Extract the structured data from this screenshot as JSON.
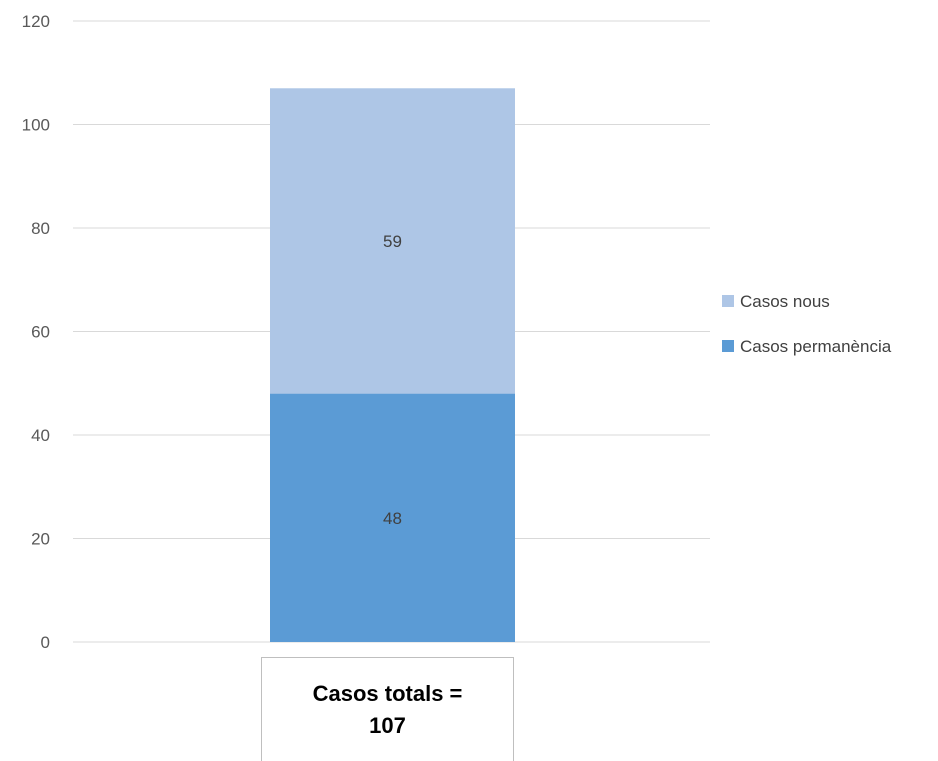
{
  "chart_data": {
    "type": "bar",
    "stacked": true,
    "categories": [
      "Casos totals = 107"
    ],
    "series": [
      {
        "name": "Casos permanència",
        "values": [
          48
        ],
        "color": "#5b9bd5"
      },
      {
        "name": "Casos nous",
        "values": [
          59
        ],
        "color": "#aec6e6"
      }
    ],
    "ylim": [
      0,
      120
    ],
    "yticks": [
      0,
      20,
      40,
      60,
      80,
      100,
      120
    ],
    "grid": true,
    "legend_position": "right",
    "title": "",
    "xlabel": "",
    "ylabel": ""
  }
}
